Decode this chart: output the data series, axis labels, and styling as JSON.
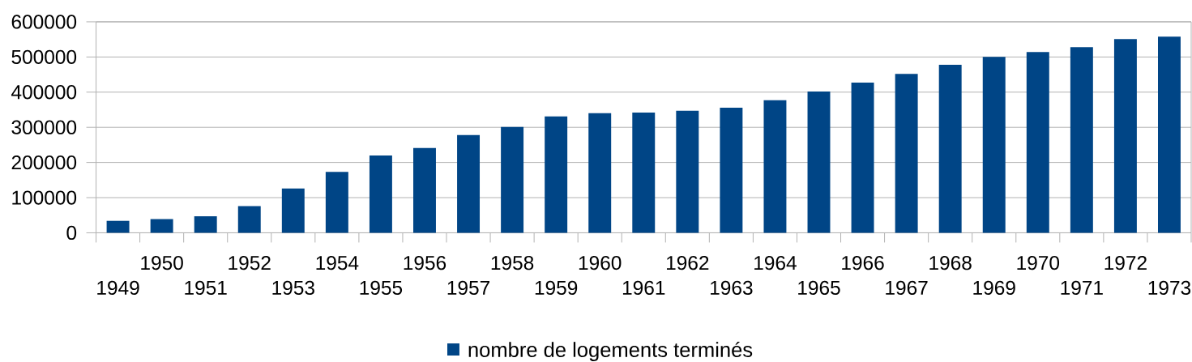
{
  "chart_data": {
    "type": "bar",
    "categories": [
      "1949",
      "1950",
      "1951",
      "1952",
      "1953",
      "1954",
      "1955",
      "1956",
      "1957",
      "1958",
      "1959",
      "1960",
      "1961",
      "1962",
      "1963",
      "1964",
      "1965",
      "1966",
      "1967",
      "1968",
      "1969",
      "1970",
      "1971",
      "1972",
      "1973"
    ],
    "series": [
      {
        "name": "nombre de logements terminés",
        "color": "#004586",
        "values": [
          34000,
          39000,
          47000,
          76000,
          126000,
          173000,
          220000,
          241000,
          278000,
          301000,
          331000,
          340000,
          342000,
          347000,
          356000,
          377000,
          402000,
          427000,
          452000,
          478000,
          500000,
          514000,
          528000,
          551000,
          558000
        ]
      }
    ],
    "ylim": [
      0,
      600000
    ],
    "yticks": [
      0,
      100000,
      200000,
      300000,
      400000,
      500000,
      600000
    ],
    "grid": "y",
    "legend": "bottom"
  }
}
